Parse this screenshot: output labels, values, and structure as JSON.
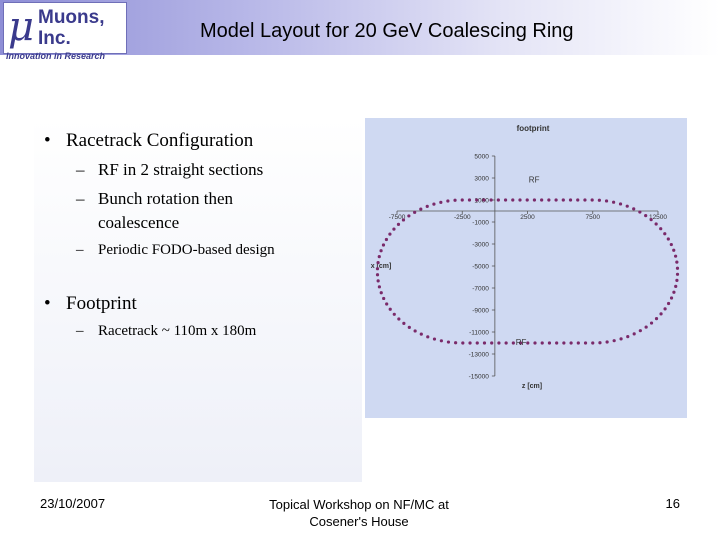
{
  "header": {
    "logo_symbol": "μ",
    "logo_line1": "Muons,",
    "logo_line2": "Inc.",
    "logo_tagline": "Innovation in Research",
    "title": "Model Layout for 20 GeV Coalescing Ring",
    "band_color": "#8e8ed6",
    "logo_color": "#3a3a8c"
  },
  "bullets": {
    "item1": "Racetrack Configuration",
    "item1_sub1": "RF in 2 straight sections",
    "item1_sub2_line1": "Bunch rotation then",
    "item1_sub2_line2": "coalescence",
    "item1_sub3": "Periodic FODO-based design",
    "item2": "Footprint",
    "item2_sub1": "Racetrack ~ 110m x 180m"
  },
  "footer": {
    "date": "23/10/2007",
    "center_line1": "Topical Workshop on NF/MC at",
    "center_line2": "Cosener's House",
    "page": "16"
  },
  "chart_data": {
    "type": "scatter",
    "title": "footprint",
    "xlabel": "z [cm]",
    "ylabel": "x [cm]",
    "xlim": [
      -7500,
      12500
    ],
    "ylim": [
      -15000,
      5000
    ],
    "x_ticks": [
      "-7500",
      "-2500",
      "2500",
      "7500",
      "12500"
    ],
    "y_ticks": [
      "5000",
      "3000",
      "1000",
      "-1000",
      "-3000",
      "-5000",
      "-7000",
      "-9000",
      "-11000",
      "-13000",
      "-15000"
    ],
    "grid": false,
    "background_color": "#cfd9f2",
    "marker_color": "#7a2a6a",
    "annotations": [
      {
        "text": "RF",
        "x": 2600,
        "y": 2600
      },
      {
        "text": "RF",
        "x": 1600,
        "y": -12200
      }
    ],
    "series": [
      {
        "shape": "racetrack",
        "straight_z_range": [
          -2500,
          7500
        ],
        "x_range": [
          -12000,
          1000
        ],
        "points": 110
      }
    ]
  }
}
